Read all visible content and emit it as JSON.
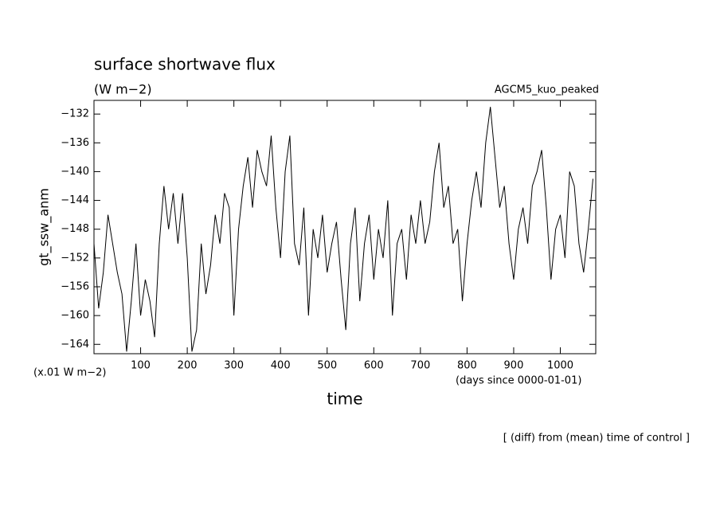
{
  "chart_data": {
    "type": "line",
    "title": "surface shortwave flux",
    "subtitle": "(W m−2)",
    "annotation": "AGCM5_kuo_peaked",
    "ylabel": "gt_ssw_anm",
    "yunit": "(x.01 W m−2)",
    "xunit": "(days since 0000-01-01)",
    "xlabel": "time",
    "footer": "[ (diff) from (mean) time of control ]",
    "color": "#000000",
    "xlim": [
      0,
      1076
    ],
    "ylim": [
      -165.3,
      -130.1
    ],
    "xticks": [
      100,
      200,
      300,
      400,
      500,
      600,
      700,
      800,
      900,
      1000
    ],
    "yticks": [
      {
        "value": -132,
        "label": "−132"
      },
      {
        "value": -136,
        "label": "−136"
      },
      {
        "value": -140,
        "label": "−140"
      },
      {
        "value": -144,
        "label": "−144"
      },
      {
        "value": -148,
        "label": "−148"
      },
      {
        "value": -152,
        "label": "−152"
      },
      {
        "value": -156,
        "label": "−156"
      },
      {
        "value": -160,
        "label": "−160"
      },
      {
        "value": -164,
        "label": "−164"
      }
    ],
    "x": [
      0,
      10,
      20,
      30,
      40,
      50,
      60,
      70,
      80,
      90,
      100,
      110,
      120,
      130,
      140,
      150,
      160,
      170,
      180,
      190,
      200,
      210,
      220,
      230,
      240,
      250,
      260,
      270,
      280,
      290,
      300,
      310,
      320,
      330,
      340,
      350,
      360,
      370,
      380,
      390,
      400,
      410,
      420,
      430,
      440,
      450,
      460,
      470,
      480,
      490,
      500,
      510,
      520,
      530,
      540,
      550,
      560,
      570,
      580,
      590,
      600,
      610,
      620,
      630,
      640,
      650,
      660,
      670,
      680,
      690,
      700,
      710,
      720,
      730,
      740,
      750,
      760,
      770,
      780,
      790,
      800,
      810,
      820,
      830,
      840,
      850,
      860,
      870,
      880,
      890,
      900,
      910,
      920,
      930,
      940,
      950,
      960,
      970,
      980,
      990,
      1000,
      1010,
      1020,
      1030,
      1040,
      1050,
      1060,
      1070
    ],
    "values": [
      -150,
      -159,
      -154,
      -146,
      -150,
      -154,
      -157,
      -165,
      -158,
      -150,
      -160,
      -155,
      -158,
      -163,
      -150,
      -142,
      -148,
      -143,
      -150,
      -143,
      -152,
      -165,
      -162,
      -150,
      -157,
      -153,
      -146,
      -150,
      -143,
      -145,
      -160,
      -148,
      -142,
      -138,
      -145,
      -137,
      -140,
      -142,
      -135,
      -145,
      -152,
      -140,
      -135,
      -150,
      -153,
      -145,
      -160,
      -148,
      -152,
      -146,
      -154,
      -150,
      -147,
      -155,
      -162,
      -150,
      -145,
      -158,
      -150,
      -146,
      -155,
      -148,
      -152,
      -144,
      -160,
      -150,
      -148,
      -155,
      -146,
      -150,
      -144,
      -150,
      -147,
      -140,
      -136,
      -145,
      -142,
      -150,
      -148,
      -158,
      -150,
      -144,
      -140,
      -145,
      -136,
      -131,
      -138,
      -145,
      -142,
      -150,
      -155,
      -148,
      -145,
      -150,
      -142,
      -140,
      -137,
      -145,
      -155,
      -148,
      -146,
      -152,
      -140,
      -142,
      -150,
      -154,
      -148,
      -141
    ]
  }
}
